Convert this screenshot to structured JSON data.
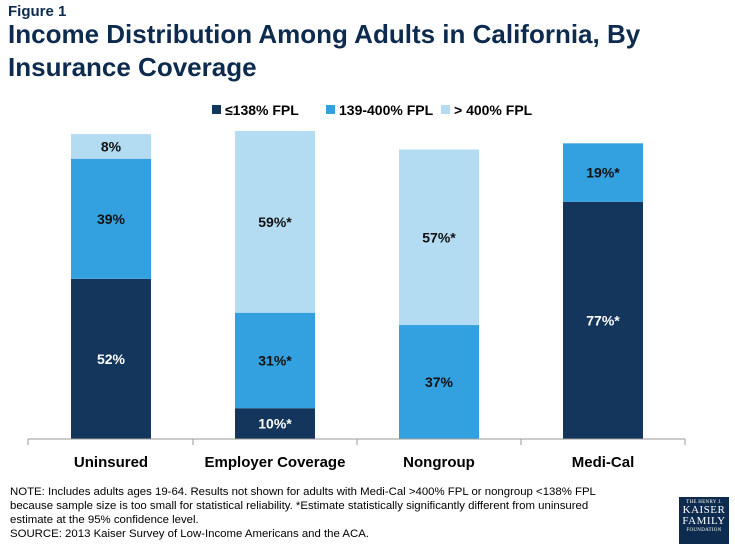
{
  "figure_label": "Figure 1",
  "title": "Income Distribution Among Adults in California, By Insurance Coverage",
  "chart_data": {
    "type": "bar",
    "stacked": true,
    "title": "Income Distribution Among Adults in California, By Insurance Coverage",
    "xlabel": "",
    "ylabel": "",
    "ylim": [
      0,
      100
    ],
    "grid": false,
    "legend_position": "top",
    "categories": [
      "Uninsured",
      "Employer Coverage",
      "Nongroup",
      "Medi-Cal"
    ],
    "series": [
      {
        "name": "≤138% FPL",
        "color": "#14365c",
        "values": [
          52,
          10,
          null,
          77
        ],
        "labels": [
          "52%",
          "10%*",
          "",
          "77%*"
        ]
      },
      {
        "name": "139-400% FPL",
        "color": "#33a0e0",
        "values": [
          39,
          31,
          37,
          19
        ],
        "labels": [
          "39%",
          "31%*",
          "37%",
          "19%*"
        ]
      },
      {
        "name": "> 400% FPL",
        "color": "#b3dcf2",
        "values": [
          8,
          59,
          57,
          null
        ],
        "labels": [
          "8%",
          "59%*",
          "57%*",
          ""
        ]
      }
    ]
  },
  "notes": {
    "note": "NOTE: Includes adults ages 19-64. Results not shown for adults with Medi-Cal >400% FPL or nongroup <138% FPL because sample size is too small for statistical reliability. *Estimate statistically significantly different from uninsured estimate at the 95% confidence level.",
    "source": "SOURCE: 2013 Kaiser Survey of Low-Income Americans and the ACA."
  },
  "logo": {
    "top": "THE HENRY J.",
    "line1": "KAISER",
    "line2": "FAMILY",
    "bottom": "FOUNDATION"
  }
}
